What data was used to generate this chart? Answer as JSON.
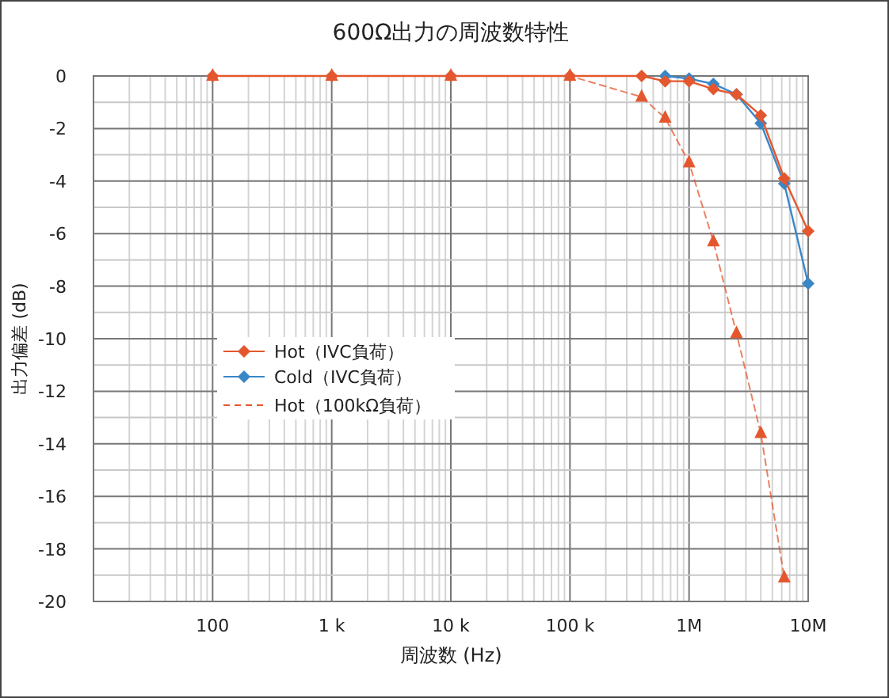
{
  "chart_data": {
    "type": "line",
    "title": "600Ω出力の周波数特性",
    "xlabel": "周波数 (Hz)",
    "ylabel": "出力偏差 (dB)",
    "log": "x",
    "grid": true,
    "legend": "left",
    "xlim": [
      10,
      10000000
    ],
    "ylim": [
      -20,
      0
    ],
    "xticks": [
      {
        "value": 100,
        "label": "100"
      },
      {
        "value": 1000,
        "label": "1 k"
      },
      {
        "value": 10000,
        "label": "10 k"
      },
      {
        "value": 100000,
        "label": "100 k"
      },
      {
        "value": 1000000,
        "label": "1M"
      },
      {
        "value": 10000000,
        "label": "10M"
      }
    ],
    "yticks": [
      0,
      -2,
      -4,
      -6,
      -8,
      -10,
      -12,
      -14,
      -16,
      -18,
      -20
    ],
    "series": [
      {
        "name": "Hot（IVC負荷）",
        "color": "#e4572e",
        "marker": "diamond",
        "line_style": "solid",
        "x": [
          100,
          1000,
          10000,
          100000,
          400000,
          630000,
          1000000,
          1600000,
          2500000,
          4000000,
          6300000,
          10000000
        ],
        "values": [
          0,
          0,
          0,
          0,
          0,
          -0.2,
          -0.2,
          -0.5,
          -0.7,
          -1.5,
          -3.9,
          -5.9
        ]
      },
      {
        "name": "Cold（IVC負荷）",
        "color": "#3a87c8",
        "marker": "diamond",
        "line_style": "solid",
        "x": [
          630000,
          1000000,
          1600000,
          2500000,
          4000000,
          6300000,
          10000000
        ],
        "values": [
          0,
          -0.1,
          -0.3,
          -0.7,
          -1.8,
          -4.1,
          -7.9
        ]
      },
      {
        "name": "Hot（100kΩ負荷）",
        "color": "#e4572e",
        "marker": "triangle",
        "line_style": "dashed",
        "x": [
          100,
          1000,
          10000,
          100000,
          400000,
          630000,
          1000000,
          1600000,
          2500000,
          4000000,
          6300000
        ],
        "values": [
          0,
          0,
          0,
          0,
          -0.8,
          -1.6,
          -3.3,
          -6.3,
          -9.8,
          -13.6,
          -19.1
        ]
      }
    ]
  }
}
